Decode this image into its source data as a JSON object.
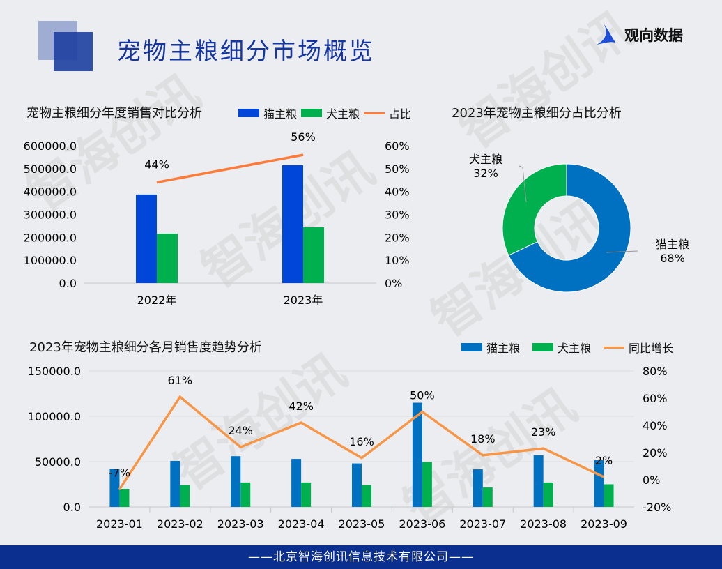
{
  "header": {
    "title": "宠物主粮细分市场概览",
    "brand": "观向数据",
    "watermark": "智海创讯"
  },
  "footer": "——北京智海创讯信息技术有限公司——",
  "colors": {
    "cat_top": "#0047d9",
    "dog": "#00b04f",
    "ratio_line": "#ff7b3a",
    "cat_bottom": "#0070c0",
    "yoy_line": "#f79646"
  },
  "chart_data": [
    {
      "type": "bar",
      "title": "宠物主粮细分年度销售对比分析",
      "categories": [
        "2022年",
        "2023年"
      ],
      "series": [
        {
          "name": "猫主粮",
          "values": [
            387000,
            515000
          ]
        },
        {
          "name": "犬主粮",
          "values": [
            216000,
            244000
          ]
        },
        {
          "name": "占比",
          "type": "line",
          "axis": "right",
          "values": [
            44,
            56
          ],
          "labels": [
            "44%",
            "56%"
          ]
        }
      ],
      "yticks": [
        "0.0",
        "100000.0",
        "200000.0",
        "300000.0",
        "400000.0",
        "500000.0",
        "600000.0"
      ],
      "ylim": [
        0,
        600000
      ],
      "y2ticks": [
        "0%",
        "10%",
        "20%",
        "30%",
        "40%",
        "50%",
        "60%"
      ],
      "y2lim": [
        0,
        60
      ],
      "legend": "top"
    },
    {
      "type": "pie",
      "title": "2023年宠物主粮细分占比分析",
      "donut": true,
      "slices": [
        {
          "name": "猫主粮",
          "value": 68,
          "label": "68%",
          "color": "#0070c0"
        },
        {
          "name": "犬主粮",
          "value": 32,
          "label": "32%",
          "color": "#00b04f"
        }
      ]
    },
    {
      "type": "bar",
      "title": "2023年宠物主粮细分各月销售度趋势分析",
      "categories": [
        "2023-01",
        "2023-02",
        "2023-03",
        "2023-04",
        "2023-05",
        "2023-06",
        "2023-07",
        "2023-08",
        "2023-09"
      ],
      "series": [
        {
          "name": "猫主粮",
          "values": [
            42300,
            50800,
            56000,
            53000,
            48000,
            115000,
            41500,
            57000,
            51500
          ]
        },
        {
          "name": "犬主粮",
          "values": [
            20000,
            24000,
            27000,
            27000,
            24000,
            49500,
            21500,
            27000,
            25000
          ]
        },
        {
          "name": "同比增长",
          "type": "line",
          "axis": "right",
          "values": [
            -7,
            61,
            24,
            42,
            16,
            50,
            18,
            23,
            2
          ],
          "labels": [
            "-7%",
            "61%",
            "24%",
            "42%",
            "16%",
            "50%",
            "18%",
            "23%",
            "2%"
          ]
        }
      ],
      "yticks": [
        "0.0",
        "50000.0",
        "100000.0",
        "150000.0"
      ],
      "ylim": [
        0,
        150000
      ],
      "y2ticks": [
        "-20%",
        "0%",
        "20%",
        "40%",
        "60%",
        "80%"
      ],
      "y2lim": [
        -20,
        80
      ],
      "legend": "top-right"
    }
  ]
}
